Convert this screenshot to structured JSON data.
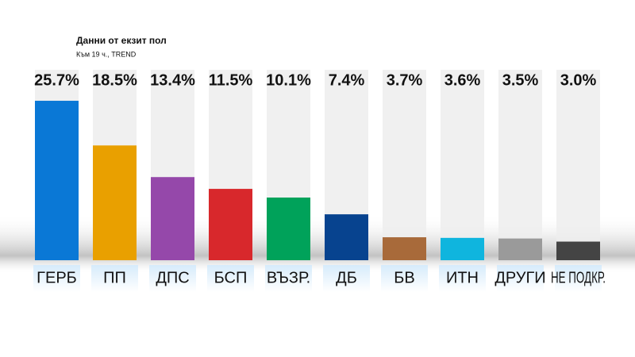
{
  "chart_data": {
    "type": "bar",
    "title": "Данни от екзит пол",
    "subtitle": "Към 19 ч., TREND",
    "categories": [
      "ГЕРБ",
      "ПП",
      "ДПС",
      "БСП",
      "ВЪЗР.",
      "ДБ",
      "БВ",
      "ИТН",
      "ДРУГИ",
      "НЕ ПОДКР."
    ],
    "values": [
      25.7,
      18.5,
      13.4,
      11.5,
      10.1,
      7.4,
      3.7,
      3.6,
      3.5,
      3.0
    ],
    "value_labels": [
      "25.7%",
      "18.5%",
      "13.4%",
      "11.5%",
      "10.1%",
      "7.4%",
      "3.7%",
      "3.6%",
      "3.5%",
      "3.0%"
    ],
    "colors": [
      "#0a78d6",
      "#e9a000",
      "#9548aa",
      "#d8282c",
      "#00a25a",
      "#07438f",
      "#a86a3a",
      "#0fb5de",
      "#9a9a9a",
      "#444444"
    ]
  }
}
